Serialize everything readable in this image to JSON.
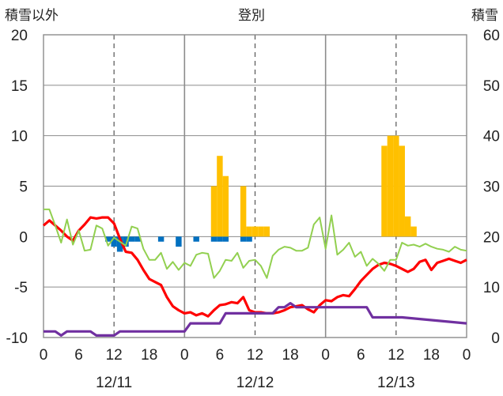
{
  "chart_data": {
    "type": "line",
    "title": "登別",
    "left_axis_label": "積雪以外",
    "right_axis_label": "積雪",
    "left_ylim": [
      -10,
      20
    ],
    "right_ylim": [
      0,
      60
    ],
    "left_ticks": [
      "20",
      "15",
      "10",
      "5",
      "0",
      "-5",
      "-10"
    ],
    "right_ticks": [
      "60",
      "50",
      "40",
      "30",
      "20",
      "10",
      "0"
    ],
    "x_range_hours": [
      0,
      72
    ],
    "x_tick_labels": [
      "0",
      "6",
      "12",
      "18",
      "0",
      "6",
      "12",
      "18",
      "0",
      "6",
      "12",
      "18",
      "0"
    ],
    "date_labels": [
      "12/11",
      "12/12",
      "12/13"
    ],
    "grid": true,
    "series": [
      {
        "color": "#ff0000",
        "type": "line",
        "axis": "left",
        "x": [
          0,
          1,
          2,
          3,
          4,
          5,
          6,
          7,
          8,
          9,
          10,
          11,
          12,
          13,
          14,
          15,
          16,
          17,
          18,
          19,
          20,
          21,
          22,
          23,
          24,
          25,
          26,
          27,
          28,
          29,
          30,
          31,
          32,
          33,
          34,
          35,
          36,
          37,
          38,
          39,
          40,
          41,
          42,
          43,
          44,
          45,
          46,
          47,
          48,
          49,
          50,
          51,
          52,
          53,
          54,
          55,
          56,
          57,
          58,
          59,
          60,
          61,
          62,
          63,
          64,
          65,
          66,
          67,
          68,
          69,
          70,
          71,
          72
        ],
        "values": [
          1.1,
          1.6,
          1.1,
          0.6,
          0.0,
          -0.4,
          0.6,
          1.2,
          1.9,
          1.8,
          1.9,
          1.9,
          1.3,
          -0.2,
          -1.5,
          -1.6,
          -2.3,
          -3.3,
          -4.2,
          -4.5,
          -4.8,
          -6.0,
          -6.9,
          -7.3,
          -7.6,
          -7.5,
          -7.8,
          -7.6,
          -7.9,
          -7.3,
          -6.8,
          -6.7,
          -6.5,
          -6.6,
          -6.0,
          -7.3,
          -7.5,
          -7.5,
          -7.6,
          -7.6,
          -7.5,
          -7.3,
          -7.0,
          -6.9,
          -6.8,
          -7.2,
          -7.5,
          -6.8,
          -6.3,
          -6.4,
          -6.0,
          -5.8,
          -5.9,
          -5.2,
          -4.4,
          -3.8,
          -3.2,
          -2.8,
          -2.6,
          -2.7,
          -2.9,
          -3.2,
          -3.5,
          -3.2,
          -2.5,
          -2.3,
          -3.3,
          -2.6,
          -2.4,
          -2.2,
          -2.4,
          -2.6,
          -2.3
        ]
      },
      {
        "color": "#92d050",
        "type": "line",
        "axis": "left",
        "x": [
          0,
          1,
          2,
          3,
          4,
          5,
          6,
          7,
          8,
          9,
          10,
          11,
          12,
          13,
          14,
          15,
          16,
          17,
          18,
          19,
          20,
          21,
          22,
          23,
          24,
          25,
          26,
          27,
          28,
          29,
          30,
          31,
          32,
          33,
          34,
          35,
          36,
          37,
          38,
          39,
          40,
          41,
          42,
          43,
          44,
          45,
          46,
          47,
          48,
          49,
          50,
          51,
          52,
          53,
          54,
          55,
          56,
          57,
          58,
          59,
          60,
          61,
          62,
          63,
          64,
          65,
          66,
          67,
          68,
          69,
          70,
          71,
          72
        ],
        "values": [
          2.7,
          2.7,
          1.1,
          -0.6,
          1.7,
          -0.8,
          0.6,
          -1.4,
          -1.3,
          1.1,
          0.8,
          -0.9,
          -0.1,
          -0.5,
          -0.9,
          1.0,
          0.8,
          -1.2,
          -2.3,
          -2.3,
          -1.6,
          -3.2,
          -2.5,
          -3.3,
          -2.6,
          -2.9,
          -1.8,
          -1.6,
          -1.7,
          -4.1,
          -3.4,
          -2.3,
          -2.4,
          -1.6,
          -3.1,
          -2.4,
          -2.3,
          -2.9,
          -4.1,
          -1.9,
          -1.3,
          -1.0,
          -1.1,
          -1.4,
          -1.4,
          -1.1,
          1.2,
          1.9,
          -1.2,
          2.1,
          -1.8,
          -1.3,
          -0.6,
          -2.0,
          -1.5,
          -2.9,
          -2.2,
          -2.7,
          -3.4,
          -2.3,
          -2.3,
          -0.6,
          -0.9,
          -0.8,
          -1.0,
          -0.7,
          -1.0,
          -1.2,
          -1.3,
          -1.5,
          -1.0,
          -1.3,
          -1.4
        ]
      },
      {
        "color": "#7030a0",
        "type": "line",
        "axis": "left",
        "x": [
          0,
          2,
          3,
          4,
          5,
          8,
          9,
          12,
          13,
          14,
          15,
          24,
          25,
          26,
          27,
          30,
          31,
          39,
          40,
          41,
          42,
          43,
          46,
          55,
          56,
          60,
          61,
          72
        ],
        "values": [
          -9.4,
          -9.4,
          -9.8,
          -9.4,
          -9.4,
          -9.4,
          -9.8,
          -9.8,
          -9.4,
          -9.4,
          -9.4,
          -9.4,
          -8.6,
          -8.6,
          -8.6,
          -8.6,
          -7.6,
          -7.6,
          -7.0,
          -7.0,
          -6.6,
          -7.0,
          -7.0,
          -7.0,
          -8.0,
          -8.0,
          -8.0,
          -8.6
        ]
      },
      {
        "color": "#0070c0",
        "type": "bar",
        "axis": "left",
        "x": [
          11,
          12,
          13,
          14,
          15,
          16,
          20,
          23,
          26,
          29,
          30,
          31,
          34,
          35
        ],
        "values": [
          -0.5,
          -1.0,
          -1.5,
          -1.0,
          -0.5,
          -0.5,
          -0.5,
          -1.0,
          -0.5,
          -0.5,
          -0.5,
          -0.5,
          -0.5,
          -0.5
        ]
      },
      {
        "color": "#ffc000",
        "type": "bar",
        "axis": "left",
        "x": [
          29,
          30,
          31,
          32,
          34,
          35,
          36,
          37,
          38,
          58,
          59,
          60,
          61,
          62,
          63,
          64
        ],
        "values": [
          5,
          8,
          6,
          0,
          5,
          1,
          1,
          1,
          1,
          9,
          10,
          10,
          9,
          2,
          1,
          0
        ]
      }
    ]
  }
}
